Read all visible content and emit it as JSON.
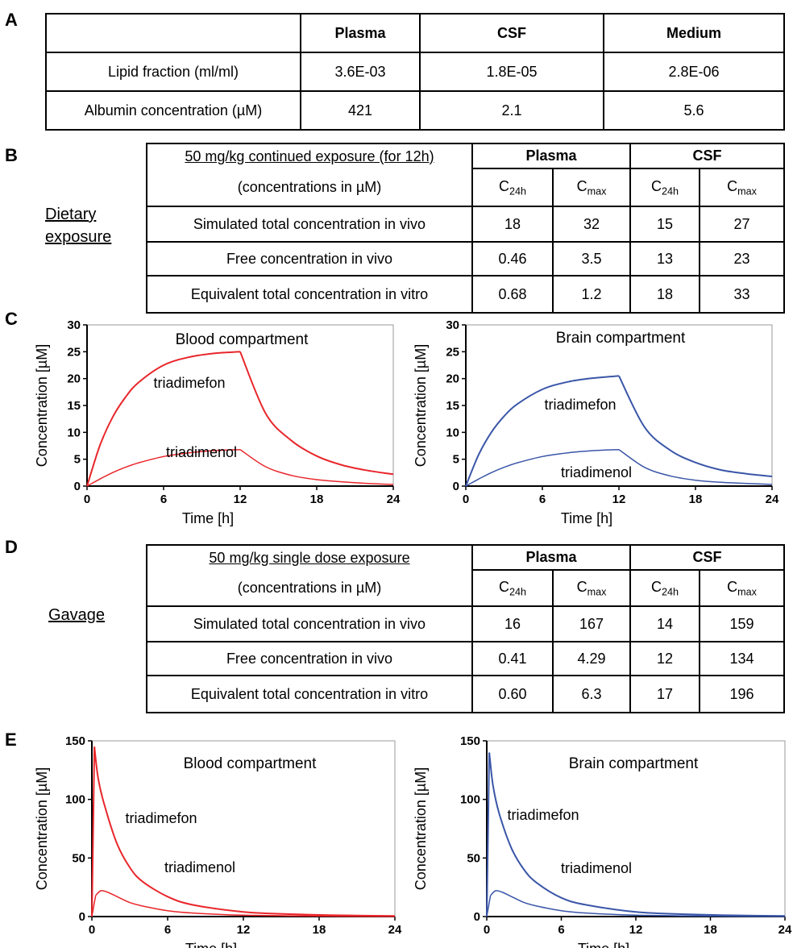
{
  "panels": {
    "A": "A",
    "B": "B",
    "C": "C",
    "D": "D",
    "E": "E"
  },
  "tableA": {
    "headers": [
      "",
      "Plasma",
      "CSF",
      "Medium"
    ],
    "rows": [
      [
        "Lipid fraction (ml/ml)",
        "3.6E-03",
        "1.8E-05",
        "2.8E-06"
      ],
      [
        "Albumin concentration (µM)",
        "421",
        "2.1",
        "5.6"
      ]
    ]
  },
  "tableB": {
    "side_label_line1": "Dietary",
    "side_label_line2": "exposure",
    "title": "50 mg/kg continued exposure (for 12h)",
    "subtitle": "(concentrations in µM)",
    "group_plasma": "Plasma",
    "group_csf": "CSF",
    "c24h": "C",
    "c24h_sub": "24h",
    "cmax": "C",
    "cmax_sub": "max",
    "rows": [
      [
        "Simulated total concentration in vivo",
        "18",
        "32",
        "15",
        "27"
      ],
      [
        "Free concentration in vivo",
        "0.46",
        "3.5",
        "13",
        "23"
      ],
      [
        "Equivalent total concentration in vitro",
        "0.68",
        "1.2",
        "18",
        "33"
      ]
    ]
  },
  "tableD": {
    "side_label": "Gavage",
    "title": "50 mg/kg single dose exposure",
    "subtitle": "(concentrations in µM)",
    "group_plasma": "Plasma",
    "group_csf": "CSF",
    "c24h": "C",
    "c24h_sub": "24h",
    "cmax": "C",
    "cmax_sub": "max",
    "rows": [
      [
        "Simulated total concentration in vivo",
        "16",
        "167",
        "14",
        "159"
      ],
      [
        "Free concentration in vivo",
        "0.41",
        "4.29",
        "12",
        "134"
      ],
      [
        "Equivalent total concentration in vitro",
        "0.60",
        "6.3",
        "17",
        "196"
      ]
    ]
  },
  "chart_data": [
    {
      "type": "line",
      "title": "Blood compartment",
      "xlabel": "Time [h]",
      "ylabel": "Concentration [µM]",
      "xlim": [
        0,
        24
      ],
      "ylim": [
        0,
        30
      ],
      "xticks": [
        0,
        6,
        12,
        18,
        24
      ],
      "yticks": [
        0,
        5,
        10,
        15,
        20,
        25,
        30
      ],
      "color": "#e8262b",
      "series": [
        {
          "name": "triadimefon",
          "x": [
            0,
            1,
            2,
            3,
            4,
            6,
            8,
            10,
            12,
            14,
            16,
            18,
            20,
            22,
            24
          ],
          "values": [
            0,
            7.5,
            12.8,
            16.5,
            19.2,
            22.5,
            24.0,
            24.7,
            25.0,
            13.5,
            8.5,
            5.6,
            3.9,
            2.9,
            2.2
          ]
        },
        {
          "name": "triadimenol",
          "x": [
            0,
            1,
            2,
            3,
            4,
            6,
            8,
            10,
            12,
            14,
            16,
            18,
            20,
            22,
            24
          ],
          "values": [
            0,
            1.3,
            2.5,
            3.5,
            4.3,
            5.5,
            6.2,
            6.6,
            6.8,
            3.6,
            2.0,
            1.2,
            0.8,
            0.5,
            0.3
          ]
        }
      ]
    },
    {
      "type": "line",
      "title": "Brain compartment",
      "xlabel": "Time [h]",
      "ylabel": "Concentration [µM]",
      "xlim": [
        0,
        24
      ],
      "ylim": [
        0,
        30
      ],
      "xticks": [
        0,
        6,
        12,
        18,
        24
      ],
      "yticks": [
        0,
        5,
        10,
        15,
        20,
        25,
        30
      ],
      "color": "#3a56a8",
      "series": [
        {
          "name": "triadimefon",
          "x": [
            0,
            1,
            2,
            3,
            4,
            6,
            8,
            10,
            12,
            14,
            16,
            18,
            20,
            22,
            24
          ],
          "values": [
            0,
            5.8,
            10.0,
            13.0,
            15.2,
            18.0,
            19.4,
            20.1,
            20.5,
            11.0,
            6.7,
            4.4,
            3.0,
            2.3,
            1.8
          ]
        },
        {
          "name": "triadimenol",
          "x": [
            0,
            1,
            2,
            3,
            4,
            6,
            8,
            10,
            12,
            14,
            16,
            18,
            20,
            22,
            24
          ],
          "values": [
            0,
            1.3,
            2.5,
            3.5,
            4.3,
            5.5,
            6.2,
            6.6,
            6.8,
            3.5,
            1.9,
            1.1,
            0.7,
            0.5,
            0.3
          ]
        }
      ]
    },
    {
      "type": "line",
      "title": "Blood compartment",
      "xlabel": "Time [h]",
      "ylabel": "Concentration [µM]",
      "xlim": [
        0,
        24
      ],
      "ylim": [
        0,
        150
      ],
      "xticks": [
        0,
        6,
        12,
        18,
        24
      ],
      "yticks": [
        0,
        50,
        100,
        150
      ],
      "color": "#e8262b",
      "series": [
        {
          "name": "triadimefon",
          "x": [
            0,
            0.2,
            0.5,
            1,
            2,
            3,
            4,
            6,
            8,
            12,
            16,
            20,
            24
          ],
          "values": [
            0,
            145,
            118,
            95,
            62,
            42,
            30,
            17,
            10,
            4,
            2,
            1,
            0.5
          ]
        },
        {
          "name": "triadimenol",
          "x": [
            0,
            0.3,
            0.7,
            1.2,
            2,
            3,
            4,
            6,
            8,
            12,
            16,
            20,
            24
          ],
          "values": [
            0,
            18,
            22,
            21,
            17,
            12,
            9,
            5,
            3,
            1.2,
            0.6,
            0.3,
            0.1
          ]
        }
      ]
    },
    {
      "type": "line",
      "title": "Brain compartment",
      "xlabel": "Time [h]",
      "ylabel": "Concentration [µM]",
      "xlim": [
        0,
        24
      ],
      "ylim": [
        0,
        150
      ],
      "xticks": [
        0,
        6,
        12,
        18,
        24
      ],
      "yticks": [
        0,
        50,
        100,
        150
      ],
      "color": "#3a56a8",
      "series": [
        {
          "name": "triadimefon",
          "x": [
            0,
            0.2,
            0.5,
            1,
            2,
            3,
            4,
            6,
            8,
            12,
            16,
            20,
            24
          ],
          "values": [
            0,
            140,
            112,
            88,
            58,
            40,
            29,
            16,
            10,
            4,
            2,
            1,
            0.5
          ]
        },
        {
          "name": "triadimenol",
          "x": [
            0,
            0.3,
            0.7,
            1.2,
            2,
            3,
            4,
            6,
            8,
            12,
            16,
            20,
            24
          ],
          "values": [
            0,
            18,
            22,
            21,
            17,
            12,
            9,
            5,
            3,
            1.2,
            0.6,
            0.3,
            0.1
          ]
        }
      ]
    }
  ]
}
